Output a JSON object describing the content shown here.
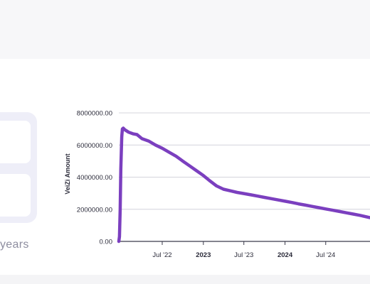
{
  "summary_panel": {
    "duration_suffix": "years"
  },
  "chart_data": {
    "type": "line",
    "title": "",
    "xlabel": "",
    "ylabel": "VeiZi Amount",
    "y_tick_labels": [
      "0.00",
      "2000000.00",
      "4000000.00",
      "6000000.00",
      "8000000.00"
    ],
    "x_tick_labels": [
      "Jul '22",
      "2023",
      "Jul '23",
      "2024",
      "Jul '24"
    ],
    "x_tick_bold": [
      false,
      true,
      false,
      true,
      false
    ],
    "ylim": [
      0,
      8000000
    ],
    "xlim": [
      "2021-12-19",
      "2025-01-15"
    ],
    "grid": true,
    "line_color": "#7b3fbf",
    "series": [
      {
        "x": [
          "2021-12-19",
          "2021-12-22",
          "2021-12-25",
          "2021-12-28",
          "2022-01-01",
          "2022-01-04",
          "2022-01-08",
          "2022-01-15",
          "2022-02-01",
          "2022-02-20",
          "2022-03-10",
          "2022-04-01",
          "2022-05-01",
          "2022-06-01",
          "2022-07-01",
          "2022-08-01",
          "2022-09-01",
          "2022-10-01",
          "2022-11-01",
          "2022-12-01",
          "2023-01-01",
          "2023-02-01",
          "2023-03-01",
          "2023-04-01",
          "2023-05-01",
          "2023-06-01",
          "2023-07-01",
          "2023-08-01",
          "2023-09-01",
          "2023-10-01",
          "2023-11-01",
          "2023-12-01",
          "2024-01-01",
          "2024-02-01",
          "2024-03-01",
          "2024-04-01",
          "2024-05-01",
          "2024-06-01",
          "2024-07-01",
          "2024-08-01",
          "2024-09-01",
          "2024-10-01",
          "2024-11-01",
          "2024-12-01",
          "2025-01-15"
        ],
        "y": [
          0,
          300000,
          2000000,
          4500000,
          6500000,
          7000000,
          7050000,
          6950000,
          6800000,
          6700000,
          6650000,
          6400000,
          6250000,
          6000000,
          5800000,
          5550000,
          5300000,
          5000000,
          4700000,
          4400000,
          4100000,
          3750000,
          3450000,
          3250000,
          3150000,
          3050000,
          2980000,
          2900000,
          2820000,
          2740000,
          2660000,
          2580000,
          2500000,
          2420000,
          2340000,
          2260000,
          2180000,
          2100000,
          2020000,
          1940000,
          1860000,
          1780000,
          1700000,
          1620000,
          1480000
        ]
      }
    ]
  }
}
